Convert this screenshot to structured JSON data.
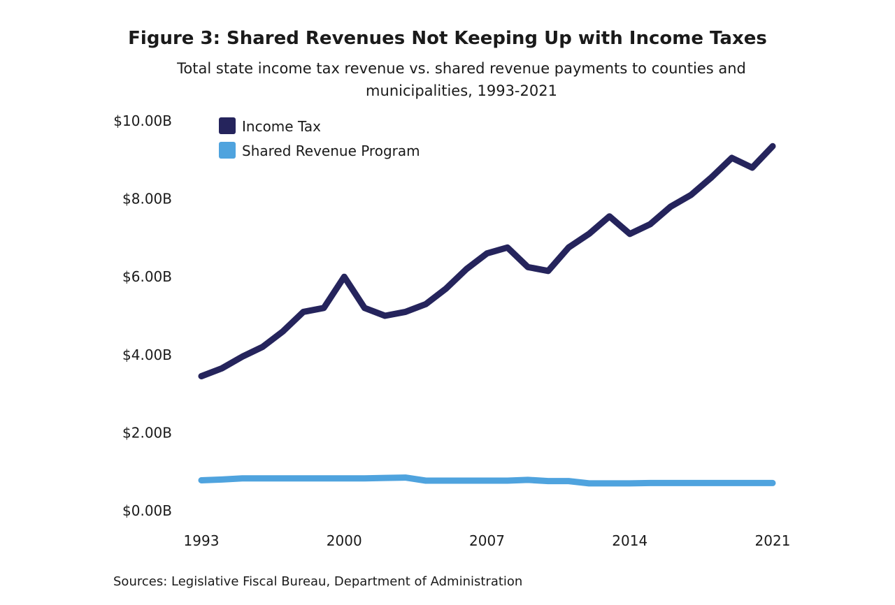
{
  "title": "Figure 3: Shared Revenues Not Keeping Up with Income Taxes",
  "subtitle": "Total state income tax revenue vs. shared revenue payments to counties and municipalities, 1993-2021",
  "source": "Sources: Legislative Fiscal Bureau, Department of Administration",
  "colors": {
    "income_tax": "#25245c",
    "shared_revenue": "#4fa3de"
  },
  "chart_data": {
    "type": "line",
    "title": "Figure 3: Shared Revenues Not Keeping Up with Income Taxes",
    "subtitle": "Total state income tax revenue vs. shared revenue payments to counties and municipalities, 1993-2021",
    "xlabel": "",
    "ylabel": "",
    "x": [
      1993,
      1994,
      1995,
      1996,
      1997,
      1998,
      1999,
      2000,
      2001,
      2002,
      2003,
      2004,
      2005,
      2006,
      2007,
      2008,
      2009,
      2010,
      2011,
      2012,
      2013,
      2014,
      2015,
      2016,
      2017,
      2018,
      2019,
      2020,
      2021
    ],
    "x_ticks": [
      "1993",
      "2000",
      "2007",
      "2014",
      "2021"
    ],
    "y_ticks": [
      "$0.00B",
      "$2.00B",
      "$4.00B",
      "$6.00B",
      "$8.00B",
      "$10.00B"
    ],
    "y_tick_values": [
      0,
      2,
      4,
      6,
      8,
      10
    ],
    "ylim": [
      0,
      10
    ],
    "legend_position": "top-left",
    "grid": false,
    "series": [
      {
        "name": "Income Tax",
        "color": "#25245c",
        "values": [
          3.45,
          3.65,
          3.95,
          4.2,
          4.6,
          5.1,
          5.2,
          6.0,
          5.2,
          5.0,
          5.1,
          5.3,
          5.7,
          6.2,
          6.6,
          6.75,
          6.25,
          6.15,
          6.75,
          7.1,
          7.55,
          7.1,
          7.35,
          7.8,
          8.1,
          8.55,
          9.05,
          8.8,
          9.35
        ]
      },
      {
        "name": "Shared Revenue Program",
        "color": "#4fa3de",
        "values": [
          0.78,
          0.8,
          0.83,
          0.83,
          0.83,
          0.83,
          0.83,
          0.83,
          0.83,
          0.84,
          0.85,
          0.77,
          0.77,
          0.77,
          0.77,
          0.77,
          0.79,
          0.76,
          0.76,
          0.7,
          0.7,
          0.7,
          0.71,
          0.71,
          0.71,
          0.71,
          0.71,
          0.71,
          0.71
        ]
      }
    ]
  }
}
